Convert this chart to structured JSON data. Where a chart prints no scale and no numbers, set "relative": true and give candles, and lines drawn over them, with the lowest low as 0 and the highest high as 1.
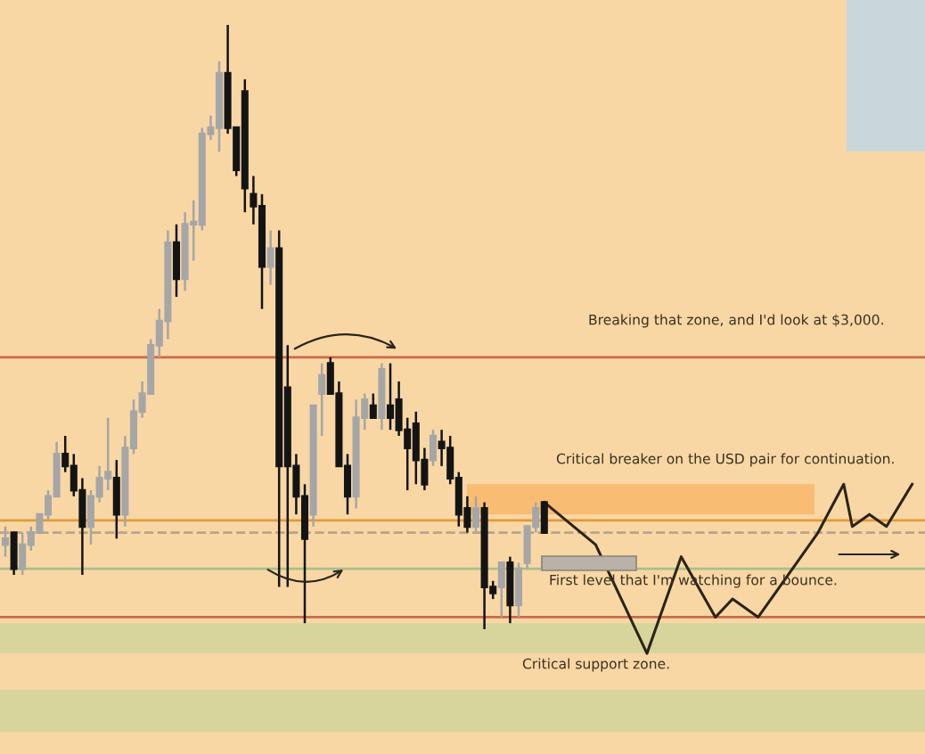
{
  "chart_data": {
    "type": "candlestick",
    "relative": true,
    "categories": [
      null,
      null,
      null,
      null,
      null,
      null,
      null,
      null,
      null,
      null,
      null,
      null,
      null,
      null,
      null,
      null,
      null,
      null,
      null,
      null,
      null,
      null,
      null,
      null,
      null,
      null,
      null,
      null,
      null,
      null,
      null,
      null,
      null,
      null,
      null,
      null,
      null,
      null,
      null,
      null,
      null,
      null,
      null,
      null,
      null,
      null,
      null,
      null,
      null,
      null,
      null,
      null,
      null,
      null,
      null,
      null,
      null,
      null,
      null,
      null,
      null,
      null,
      null,
      null,
      null,
      null,
      null,
      null,
      null,
      null,
      null,
      null,
      null,
      null,
      null,
      null,
      null,
      null,
      null,
      null,
      null,
      null,
      null,
      null,
      null,
      null,
      null,
      null,
      null,
      null,
      null,
      null,
      null,
      null,
      null,
      null,
      null,
      null,
      null,
      null,
      null,
      null,
      null,
      null,
      null,
      null,
      null
    ],
    "ohlc": [
      [
        0.14,
        0.17,
        0.12,
        0.15
      ],
      [
        0.16,
        0.16,
        0.09,
        0.1
      ],
      [
        0.1,
        0.16,
        0.09,
        0.14
      ],
      [
        0.14,
        0.17,
        0.13,
        0.16
      ],
      [
        0.16,
        0.19,
        0.16,
        0.19
      ],
      [
        0.19,
        0.23,
        0.18,
        0.22
      ],
      [
        0.22,
        0.31,
        0.22,
        0.29
      ],
      [
        0.29,
        0.32,
        0.26,
        0.27
      ],
      [
        0.27,
        0.29,
        0.22,
        0.23
      ],
      [
        0.23,
        0.25,
        0.09,
        0.17
      ],
      [
        0.17,
        0.23,
        0.14,
        0.22
      ],
      [
        0.22,
        0.27,
        0.21,
        0.25
      ],
      [
        0.25,
        0.35,
        0.23,
        0.26
      ],
      [
        0.25,
        0.28,
        0.15,
        0.19
      ],
      [
        0.19,
        0.32,
        0.17,
        0.3
      ],
      [
        0.3,
        0.38,
        0.29,
        0.36
      ],
      [
        0.36,
        0.41,
        0.35,
        0.39
      ],
      [
        0.39,
        0.48,
        0.39,
        0.47
      ],
      [
        0.47,
        0.53,
        0.45,
        0.51
      ],
      [
        0.51,
        0.66,
        0.48,
        0.64
      ],
      [
        0.64,
        0.67,
        0.55,
        0.58
      ],
      [
        0.58,
        0.69,
        0.56,
        0.67
      ],
      [
        0.67,
        0.71,
        0.61,
        0.67
      ],
      [
        0.67,
        0.83,
        0.66,
        0.82
      ],
      [
        0.82,
        0.85,
        0.81,
        0.83
      ],
      [
        0.83,
        0.94,
        0.79,
        0.92
      ],
      [
        0.92,
        1,
        0.82,
        0.83
      ],
      [
        0.83,
        0.83,
        0.75,
        0.76
      ],
      [
        0.89,
        0.91,
        0.69,
        0.73
      ],
      [
        0.72,
        0.75,
        0.67,
        0.7
      ],
      [
        0.7,
        0.72,
        0.53,
        0.6
      ],
      [
        0.6,
        0.66,
        0.57,
        0.63
      ],
      [
        0.63,
        0.66,
        0.07,
        0.27
      ],
      [
        0.4,
        0.47,
        0.07,
        0.27
      ],
      [
        0.27,
        0.29,
        0.19,
        0.22
      ],
      [
        0.22,
        0.24,
        0.01,
        0.15
      ],
      [
        0.19,
        0.37,
        0.17,
        0.37
      ],
      [
        0.39,
        0.44,
        0.32,
        0.42
      ],
      [
        0.44,
        0.45,
        0.39,
        0.39
      ],
      [
        0.39,
        0.41,
        0.27,
        0.27
      ],
      [
        0.27,
        0.29,
        0.19,
        0.22
      ],
      [
        0.22,
        0.38,
        0.2,
        0.35
      ],
      [
        0.35,
        0.39,
        0.33,
        0.38
      ],
      [
        0.37,
        0.39,
        0.35,
        0.35
      ],
      [
        0.35,
        0.44,
        0.33,
        0.43
      ],
      [
        0.37,
        0.44,
        0.33,
        0.35
      ],
      [
        0.38,
        0.41,
        0.32,
        0.33
      ],
      [
        0.33,
        0.35,
        0.23,
        0.3
      ],
      [
        0.34,
        0.36,
        0.24,
        0.28
      ],
      [
        0.28,
        0.3,
        0.23,
        0.24
      ],
      [
        0.28,
        0.33,
        0.27,
        0.32
      ],
      [
        0.31,
        0.33,
        0.27,
        0.3
      ],
      [
        0.3,
        0.32,
        0.24,
        0.25
      ],
      [
        0.25,
        0.26,
        0.17,
        0.19
      ],
      [
        0.2,
        0.22,
        0.16,
        0.17
      ],
      [
        0.17,
        0.22,
        0.16,
        0.2
      ],
      [
        0.2,
        0.21,
        0,
        0.07
      ],
      [
        0.07,
        0.08,
        0.05,
        0.06
      ],
      [
        0.07,
        0.11,
        0.02,
        0.11
      ],
      [
        0.11,
        0.12,
        0.01,
        0.04
      ],
      [
        0.04,
        0.11,
        0.02,
        0.1
      ],
      [
        0.11,
        0.17,
        0.1,
        0.17
      ],
      [
        0.17,
        0.21,
        0.16,
        0.2
      ],
      [
        0.21,
        0.21,
        0.16,
        0.16
      ],
      null,
      null,
      null,
      null,
      null,
      null,
      null,
      null,
      null,
      null,
      null,
      null,
      null,
      null,
      null,
      null,
      null,
      null,
      null,
      null,
      null,
      null,
      null,
      null,
      null,
      null,
      null,
      null,
      null,
      null,
      null,
      null,
      null,
      null,
      null,
      null,
      null,
      null,
      null,
      null,
      null,
      null,
      null
    ],
    "series": [
      {
        "type": "line",
        "color": "#2a2418",
        "values": [
          null,
          null,
          null,
          null,
          null,
          null,
          null,
          null,
          null,
          null,
          null,
          null,
          null,
          null,
          null,
          null,
          null,
          null,
          null,
          null,
          null,
          null,
          null,
          null,
          null,
          null,
          null,
          null,
          null,
          null,
          null,
          null,
          null,
          null,
          null,
          null,
          null,
          null,
          null,
          null,
          null,
          null,
          null,
          null,
          null,
          null,
          null,
          null,
          null,
          null,
          null,
          null,
          null,
          null,
          null,
          null,
          null,
          null,
          null,
          null,
          null,
          null,
          null,
          0.21,
          null,
          null,
          null,
          null,
          null,
          0.14,
          null,
          null,
          null,
          null,
          null,
          -0.04,
          null,
          null,
          null,
          0.12,
          null,
          null,
          null,
          0.02,
          null,
          0.05,
          null,
          null,
          0.02,
          null,
          0.06,
          null,
          null,
          null,
          null,
          0.16,
          null,
          null,
          0.24,
          0.17,
          null,
          0.19,
          null,
          0.17,
          null,
          null,
          0.24
        ]
      }
    ],
    "ref_lines": [
      {
        "axis": "y",
        "value": 0.45,
        "color": "#c96a4a"
      },
      {
        "axis": "y",
        "value": 0.18,
        "color": "#e39a3a"
      },
      {
        "axis": "y",
        "value": 0.16,
        "color": "#b8a58a",
        "line_style": "dashed"
      },
      {
        "axis": "y",
        "value": 0.1,
        "color": "#a8c08a"
      },
      {
        "axis": "y",
        "value": 0.02,
        "color": "#c96a4a"
      }
    ],
    "bands": [
      {
        "axis": "y",
        "from": 0.19,
        "to": 0.24,
        "color": "#f7b565"
      },
      {
        "axis": "y",
        "from": -0.04,
        "to": 0.01,
        "color": "#cfd49a"
      },
      {
        "axis": "y",
        "from": -0.17,
        "to": -0.1,
        "color": "#cfd49a"
      }
    ],
    "annotations": [
      "Breaking that zone, and I'd look at $3,000.",
      "Critical breaker on the USD pair for continuation.",
      "First level that I'm watching for a bounce.",
      "Critical support zone."
    ]
  }
}
